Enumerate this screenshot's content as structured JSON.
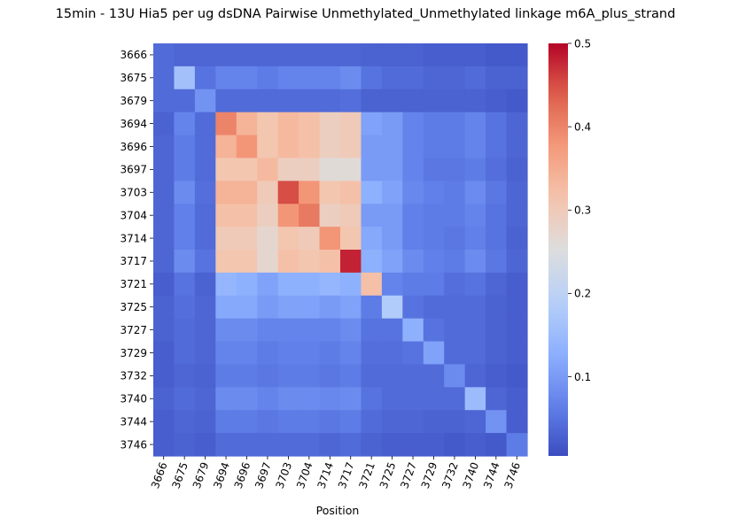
{
  "chart_data": {
    "type": "heatmap",
    "title": "15min - 13U Hia5 per ug dsDNA Pairwise Unmethylated_Unmethylated linkage m6A_plus_strand",
    "xlabel": "Position",
    "ylabel": "",
    "x_categories": [
      "3666",
      "3675",
      "3679",
      "3694",
      "3696",
      "3697",
      "3703",
      "3704",
      "3714",
      "3717",
      "3721",
      "3725",
      "3727",
      "3729",
      "3732",
      "3740",
      "3744",
      "3746"
    ],
    "y_categories": [
      "3666",
      "3675",
      "3679",
      "3694",
      "3696",
      "3697",
      "3703",
      "3704",
      "3714",
      "3717",
      "3721",
      "3725",
      "3727",
      "3729",
      "3732",
      "3740",
      "3744",
      "3746"
    ],
    "colormap": "coolwarm",
    "vmin": 0.005,
    "vmax": 0.5,
    "colorbar_ticks": [
      "0.1",
      "0.2",
      "0.3",
      "0.4",
      "0.5"
    ],
    "colorbar_tick_values": [
      0.1,
      0.2,
      0.3,
      0.4,
      0.5
    ],
    "values": [
      [
        0.04,
        0.035,
        0.035,
        0.035,
        0.035,
        0.035,
        0.035,
        0.035,
        0.035,
        0.035,
        0.03,
        0.03,
        0.03,
        0.025,
        0.025,
        0.025,
        0.02,
        0.02
      ],
      [
        0.04,
        0.16,
        0.05,
        0.07,
        0.07,
        0.06,
        0.07,
        0.07,
        0.07,
        0.08,
        0.05,
        0.04,
        0.04,
        0.035,
        0.035,
        0.04,
        0.03,
        0.03
      ],
      [
        0.04,
        0.04,
        0.09,
        0.04,
        0.04,
        0.04,
        0.04,
        0.04,
        0.04,
        0.045,
        0.03,
        0.03,
        0.03,
        0.03,
        0.03,
        0.03,
        0.025,
        0.02
      ],
      [
        0.03,
        0.07,
        0.04,
        0.4,
        0.34,
        0.31,
        0.33,
        0.32,
        0.29,
        0.3,
        0.11,
        0.1,
        0.07,
        0.06,
        0.06,
        0.07,
        0.05,
        0.035
      ],
      [
        0.035,
        0.06,
        0.04,
        0.34,
        0.38,
        0.31,
        0.33,
        0.32,
        0.29,
        0.3,
        0.1,
        0.1,
        0.07,
        0.06,
        0.06,
        0.07,
        0.05,
        0.035
      ],
      [
        0.035,
        0.06,
        0.04,
        0.31,
        0.31,
        0.33,
        0.29,
        0.29,
        0.26,
        0.26,
        0.1,
        0.1,
        0.07,
        0.055,
        0.055,
        0.06,
        0.045,
        0.03
      ],
      [
        0.035,
        0.08,
        0.045,
        0.34,
        0.34,
        0.3,
        0.45,
        0.38,
        0.31,
        0.32,
        0.13,
        0.11,
        0.075,
        0.065,
        0.06,
        0.08,
        0.055,
        0.035
      ],
      [
        0.035,
        0.065,
        0.04,
        0.32,
        0.32,
        0.29,
        0.38,
        0.41,
        0.29,
        0.3,
        0.1,
        0.1,
        0.065,
        0.06,
        0.06,
        0.07,
        0.05,
        0.035
      ],
      [
        0.035,
        0.065,
        0.04,
        0.3,
        0.3,
        0.27,
        0.31,
        0.3,
        0.38,
        0.31,
        0.12,
        0.1,
        0.065,
        0.06,
        0.055,
        0.065,
        0.05,
        0.03
      ],
      [
        0.035,
        0.08,
        0.05,
        0.31,
        0.31,
        0.27,
        0.32,
        0.31,
        0.32,
        0.48,
        0.13,
        0.11,
        0.08,
        0.065,
        0.06,
        0.08,
        0.055,
        0.035
      ],
      [
        0.025,
        0.05,
        0.03,
        0.14,
        0.13,
        0.11,
        0.13,
        0.13,
        0.14,
        0.13,
        0.32,
        0.07,
        0.06,
        0.06,
        0.045,
        0.05,
        0.035,
        0.025
      ],
      [
        0.03,
        0.045,
        0.035,
        0.12,
        0.12,
        0.1,
        0.11,
        0.11,
        0.1,
        0.11,
        0.06,
        0.18,
        0.05,
        0.04,
        0.04,
        0.04,
        0.03,
        0.025
      ],
      [
        0.03,
        0.04,
        0.035,
        0.08,
        0.08,
        0.07,
        0.07,
        0.07,
        0.07,
        0.08,
        0.05,
        0.05,
        0.13,
        0.05,
        0.04,
        0.04,
        0.03,
        0.025
      ],
      [
        0.025,
        0.04,
        0.035,
        0.07,
        0.07,
        0.06,
        0.065,
        0.065,
        0.06,
        0.07,
        0.045,
        0.045,
        0.05,
        0.11,
        0.04,
        0.04,
        0.03,
        0.025
      ],
      [
        0.025,
        0.035,
        0.03,
        0.06,
        0.06,
        0.055,
        0.06,
        0.06,
        0.055,
        0.06,
        0.04,
        0.04,
        0.04,
        0.04,
        0.08,
        0.035,
        0.025,
        0.02
      ],
      [
        0.03,
        0.04,
        0.035,
        0.08,
        0.08,
        0.07,
        0.08,
        0.08,
        0.075,
        0.08,
        0.05,
        0.04,
        0.04,
        0.04,
        0.04,
        0.15,
        0.035,
        0.025
      ],
      [
        0.025,
        0.035,
        0.03,
        0.06,
        0.06,
        0.055,
        0.06,
        0.06,
        0.055,
        0.06,
        0.04,
        0.035,
        0.035,
        0.03,
        0.03,
        0.035,
        0.09,
        0.025
      ],
      [
        0.025,
        0.03,
        0.025,
        0.04,
        0.04,
        0.04,
        0.04,
        0.04,
        0.035,
        0.04,
        0.03,
        0.025,
        0.025,
        0.025,
        0.02,
        0.025,
        0.02,
        0.06
      ]
    ]
  }
}
